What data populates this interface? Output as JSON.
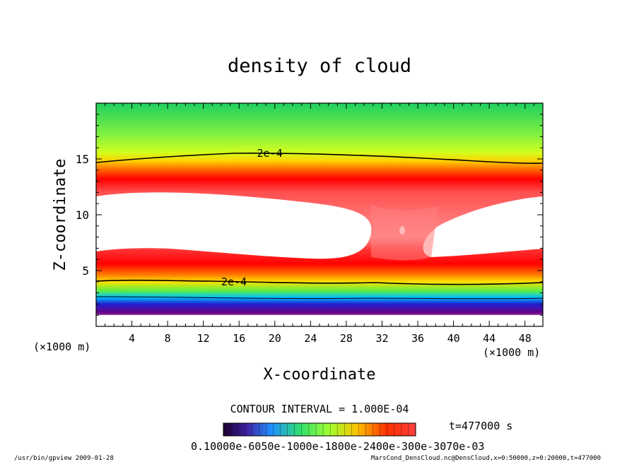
{
  "chart_data": {
    "type": "heatmap",
    "title": "density of cloud",
    "xlabel": "X-coordinate",
    "ylabel": "Z-coordinate",
    "x_unit_left": "(×1000 m)",
    "x_unit_right": "(×1000 m)",
    "xlim": [
      0,
      50
    ],
    "ylim": [
      0,
      20
    ],
    "x_ticks": [
      4,
      8,
      12,
      16,
      20,
      24,
      28,
      32,
      36,
      40,
      44,
      48
    ],
    "y_ticks": [
      5,
      10,
      15
    ],
    "contour_labels": [
      {
        "text": "2e-4",
        "x": 18,
        "z": 15.5
      },
      {
        "text": "2e-4",
        "x": 14,
        "z": 4.0
      }
    ],
    "contour_interval": "CONTOUR INTERVAL = 1.000E-04",
    "time": "t=477000 s",
    "colorbar_labels": "0.10000e-6050e-1000e-1800e-2400e-300e-3070e-03",
    "footer_left": "/usr/bin/gpview  2009-01-28",
    "footer_right": "MarsCond_DensCloud.nc@DensCloud,x=0:50000,z=0:20000,t=477000",
    "colorscale": [
      "#6a0080",
      "#2020d0",
      "#00c0ff",
      "#30e070",
      "#80ff30",
      "#ffe000",
      "#ff8000",
      "#ff0000",
      "#ffb0b0"
    ]
  }
}
